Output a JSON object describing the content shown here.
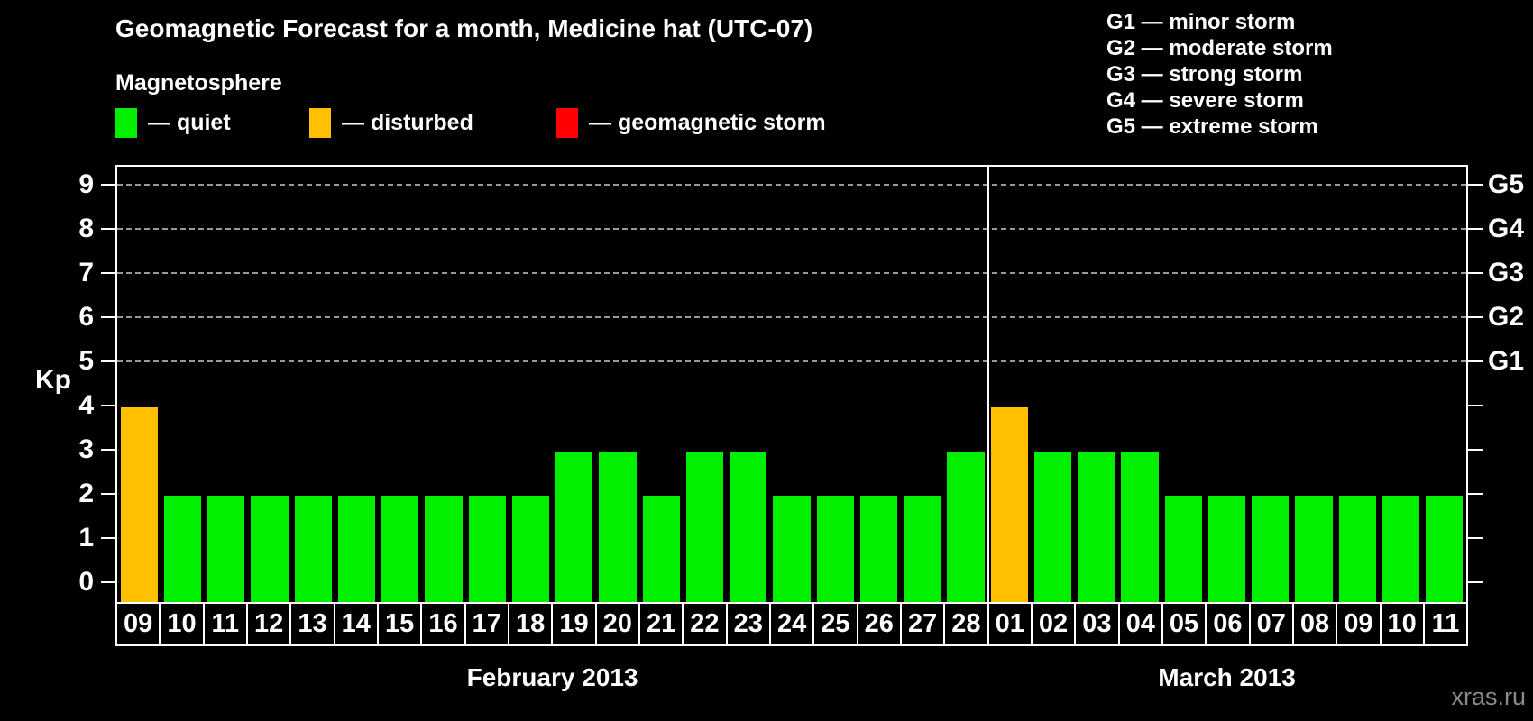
{
  "header": {
    "title": "Geomagnetic Forecast for a month, Medicine hat (UTC-07)",
    "section_label": "Magnetosphere"
  },
  "legend": {
    "items": [
      {
        "label": "— quiet",
        "state": "quiet",
        "color": "#00f000"
      },
      {
        "label": "— disturbed",
        "state": "disturbed",
        "color": "#ffc000"
      },
      {
        "label": "— geomagnetic storm",
        "state": "storm",
        "color": "#ff0000"
      }
    ]
  },
  "g_legend": {
    "items": [
      "G1 — minor storm",
      "G2 — moderate storm",
      "G3 — strong storm",
      "G4 — severe storm",
      "G5 — extreme storm"
    ]
  },
  "chart_data": {
    "type": "bar",
    "title": "Geomagnetic Forecast for a month, Medicine hat (UTC-07)",
    "ylabel": "Kp",
    "ylim": [
      -0.4,
      9.4
    ],
    "yticks": [
      0,
      1,
      2,
      3,
      4,
      5,
      6,
      7,
      8,
      9
    ],
    "gridlines": [
      5,
      6,
      7,
      8,
      9
    ],
    "right_axis": {
      "ticks": [
        5,
        6,
        7,
        8,
        9
      ],
      "labels": [
        "G1",
        "G2",
        "G3",
        "G4",
        "G5"
      ]
    },
    "bar_colors": {
      "quiet": "#00f000",
      "disturbed": "#ffc000",
      "storm": "#ff0000"
    },
    "months": [
      {
        "label": "February 2013",
        "days": [
          "09",
          "10",
          "11",
          "12",
          "13",
          "14",
          "15",
          "16",
          "17",
          "18",
          "19",
          "20",
          "21",
          "22",
          "23",
          "24",
          "25",
          "26",
          "27",
          "28"
        ],
        "values": [
          4,
          2,
          2,
          2,
          2,
          2,
          2,
          2,
          2,
          2,
          3,
          3,
          2,
          3,
          3,
          2,
          2,
          2,
          2,
          3
        ],
        "states": [
          "disturbed",
          "quiet",
          "quiet",
          "quiet",
          "quiet",
          "quiet",
          "quiet",
          "quiet",
          "quiet",
          "quiet",
          "quiet",
          "quiet",
          "quiet",
          "quiet",
          "quiet",
          "quiet",
          "quiet",
          "quiet",
          "quiet",
          "quiet"
        ]
      },
      {
        "label": "March 2013",
        "days": [
          "01",
          "02",
          "03",
          "04",
          "05",
          "06",
          "07",
          "08",
          "09",
          "10",
          "11"
        ],
        "values": [
          4,
          3,
          3,
          3,
          2,
          2,
          2,
          2,
          2,
          2,
          2
        ],
        "states": [
          "disturbed",
          "quiet",
          "quiet",
          "quiet",
          "quiet",
          "quiet",
          "quiet",
          "quiet",
          "quiet",
          "quiet",
          "quiet"
        ]
      }
    ]
  },
  "watermark": "xras.ru"
}
